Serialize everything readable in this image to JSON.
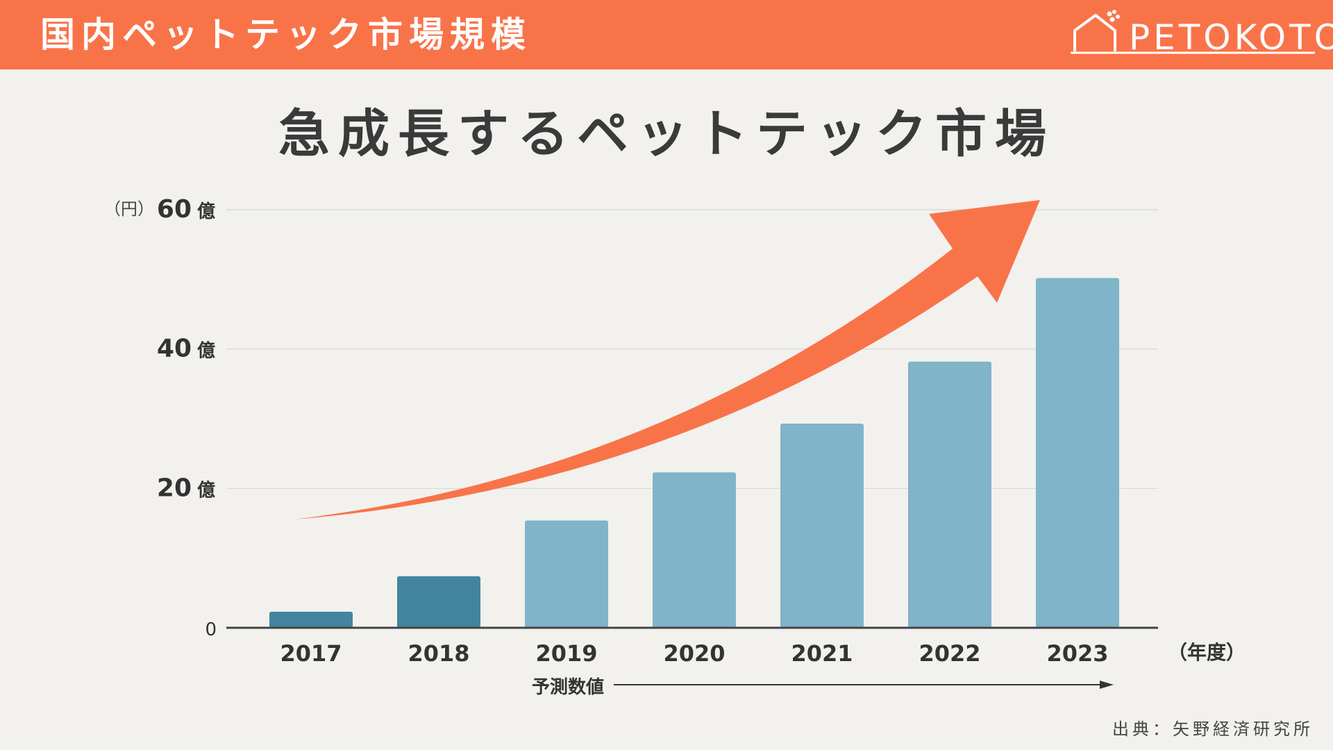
{
  "header": {
    "title": "国内ペットテック市場規模",
    "logo_text": "PETOKOTO"
  },
  "main_title": "急成長するペットテック市場",
  "source": "出典：矢野経済研究所",
  "colors": {
    "accent": "#f97349",
    "bar_actual": "#43849f",
    "bar_forecast": "#80b4c8",
    "text": "#3a3a3a",
    "background": "#f2f1ee"
  },
  "chart_data": {
    "type": "bar",
    "title": "急成長するペットテック市場",
    "y_unit_label": "（円）",
    "x_unit_label": "（年度）",
    "categories": [
      "2017",
      "2018",
      "2019",
      "2020",
      "2021",
      "2022",
      "2023"
    ],
    "series": [
      {
        "values": [
          2.3,
          7.4,
          15.4,
          22.3,
          29.3,
          38.2,
          50.2
        ]
      }
    ],
    "actual_count": 2,
    "forecast_label": "予測数値",
    "ylim": [
      0,
      60
    ],
    "y_ticks": [
      {
        "value": 0,
        "number": "0",
        "suffix": ""
      },
      {
        "value": 20,
        "number": "20",
        "suffix": "億"
      },
      {
        "value": 40,
        "number": "40",
        "suffix": "億"
      },
      {
        "value": 60,
        "number": "60",
        "suffix": "億"
      }
    ],
    "grid": true,
    "legend": "none"
  }
}
